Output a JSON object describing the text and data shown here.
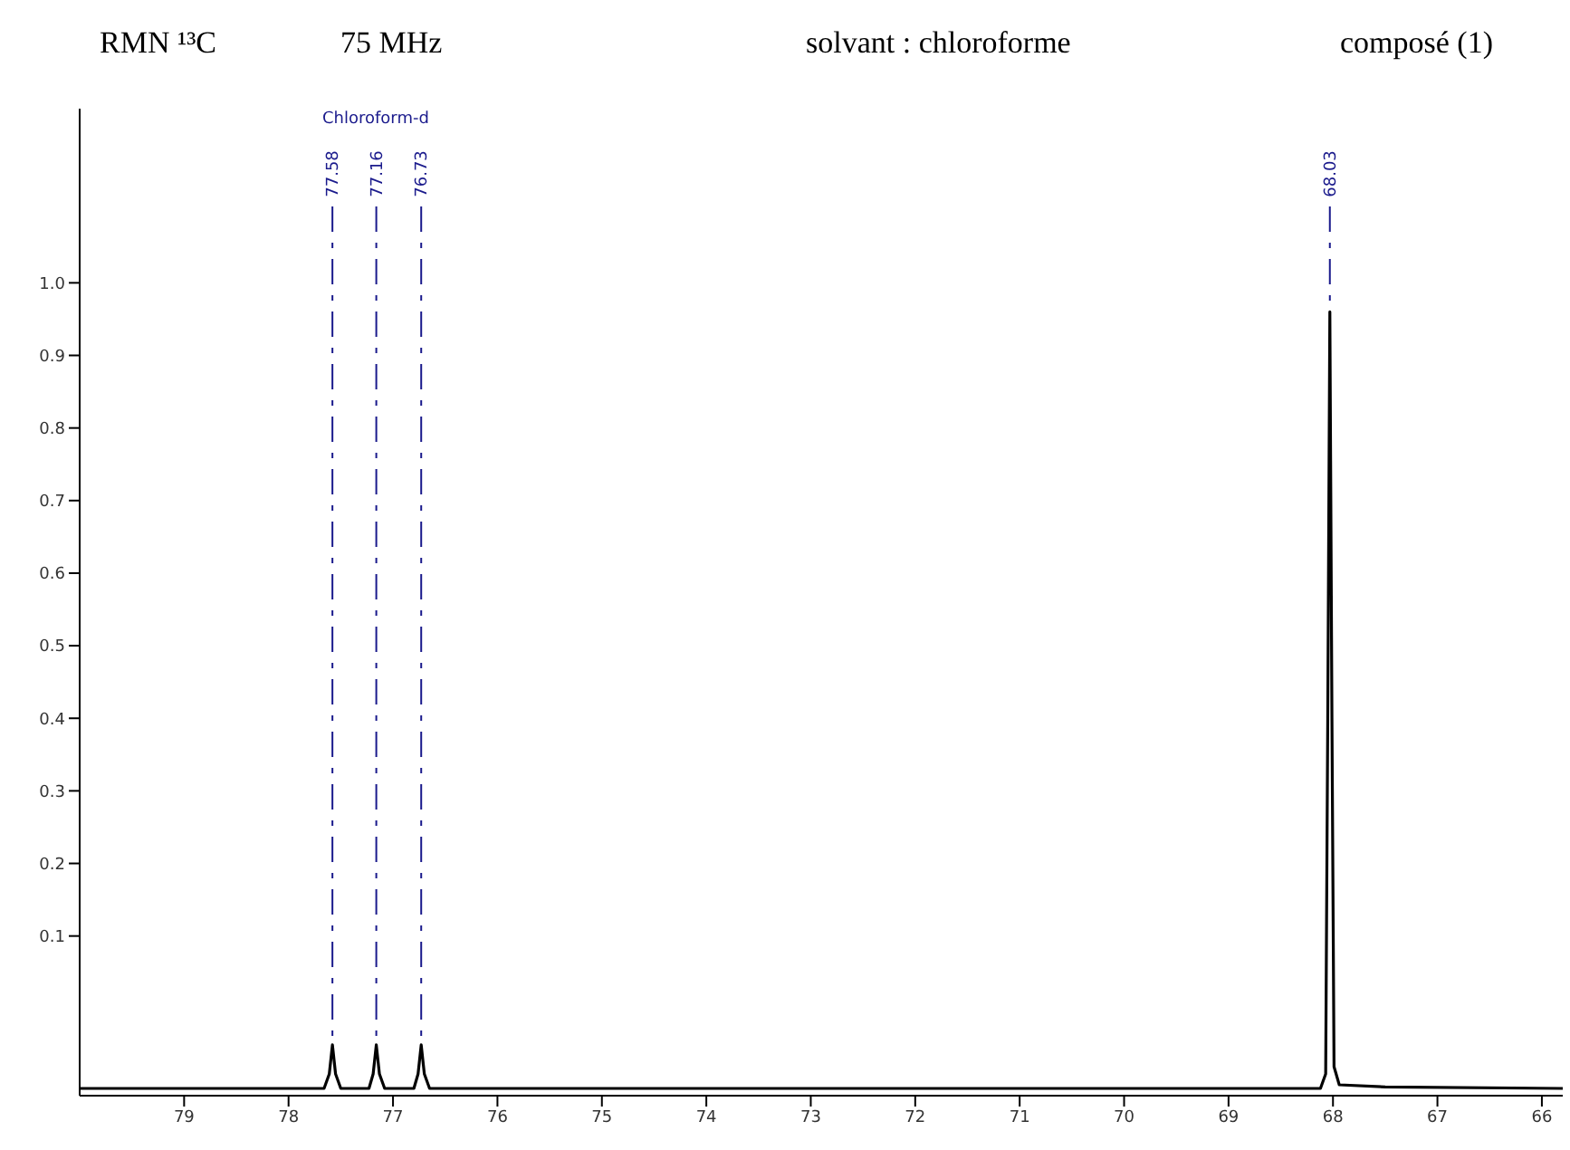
{
  "chart_data": {
    "type": "line",
    "title": "RMN ¹³C",
    "subtitle": "75 MHz",
    "annotations": [
      "solvant : chloroforme",
      "composé (1)",
      "Chloroform-d",
      {
        "text": "77.58",
        "x": 77.58,
        "y": -0.05
      },
      {
        "text": "77.16",
        "x": 77.16,
        "y": -0.05
      },
      {
        "text": "76.73",
        "x": 76.73,
        "y": -0.05
      },
      {
        "text": "68.03",
        "x": 68.03,
        "y": 0.96
      }
    ],
    "x": [
      80,
      77.66,
      77.61,
      77.58,
      77.55,
      77.5,
      77.23,
      77.19,
      77.16,
      77.13,
      77.08,
      76.8,
      76.76,
      76.73,
      76.7,
      76.65,
      68.12,
      68.07,
      68.05,
      68.03,
      68.01,
      67.99,
      67.94,
      67.5,
      65.8
    ],
    "series": [
      {
        "color": "#000000",
        "values": [
          -0.11,
          -0.11,
          -0.09,
          -0.05,
          -0.09,
          -0.11,
          -0.11,
          -0.09,
          -0.05,
          -0.09,
          -0.11,
          -0.11,
          -0.09,
          -0.05,
          -0.09,
          -0.11,
          -0.11,
          -0.09,
          0.4,
          0.96,
          0.4,
          -0.08,
          -0.105,
          -0.108,
          -0.11
        ]
      }
    ],
    "xlim": [
      80,
      65.8
    ],
    "xticks": [
      79,
      78,
      77,
      76,
      75,
      74,
      73,
      72,
      71,
      70,
      69,
      68,
      67,
      66
    ],
    "ylim": [
      -0.12,
      1.24
    ],
    "yticks": [
      0.1,
      0.2,
      0.3,
      0.4,
      0.5,
      0.6,
      0.7,
      0.8,
      0.9,
      {
        "value": 1,
        "label": "1.0"
      }
    ],
    "grid": false,
    "legend": false,
    "marker": "none",
    "line_style": "solid"
  }
}
